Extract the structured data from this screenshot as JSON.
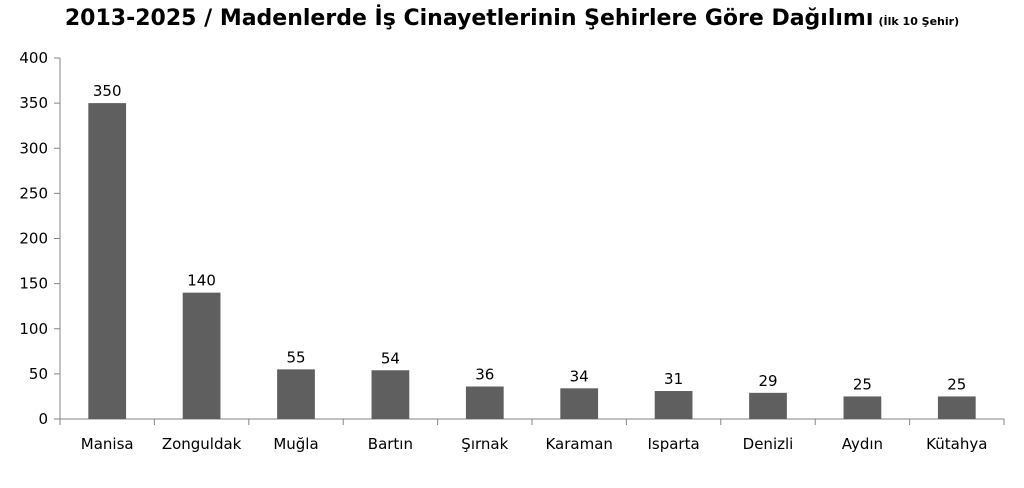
{
  "chart_data": {
    "type": "bar",
    "title": "2013-2025 / Madenlerde İş Cinayetlerinin Şehirlere Göre Dağılımı",
    "subtitle": "(İlk 10 Şehir)",
    "xlabel": "",
    "ylabel": "",
    "categories": [
      "Manisa",
      "Zonguldak",
      "Muğla",
      "Bartın",
      "Şırnak",
      "Karaman",
      "Isparta",
      "Denizli",
      "Aydın",
      "Kütahya"
    ],
    "values": [
      350,
      140,
      55,
      54,
      36,
      34,
      31,
      29,
      25,
      25
    ],
    "ylim": [
      0,
      400
    ],
    "yticks": [
      0,
      50,
      100,
      150,
      200,
      250,
      300,
      350,
      400
    ],
    "data_labels": true,
    "legend": "none",
    "grid": false,
    "bar_color": "#5f5f5f",
    "axis_color": "#868686"
  }
}
